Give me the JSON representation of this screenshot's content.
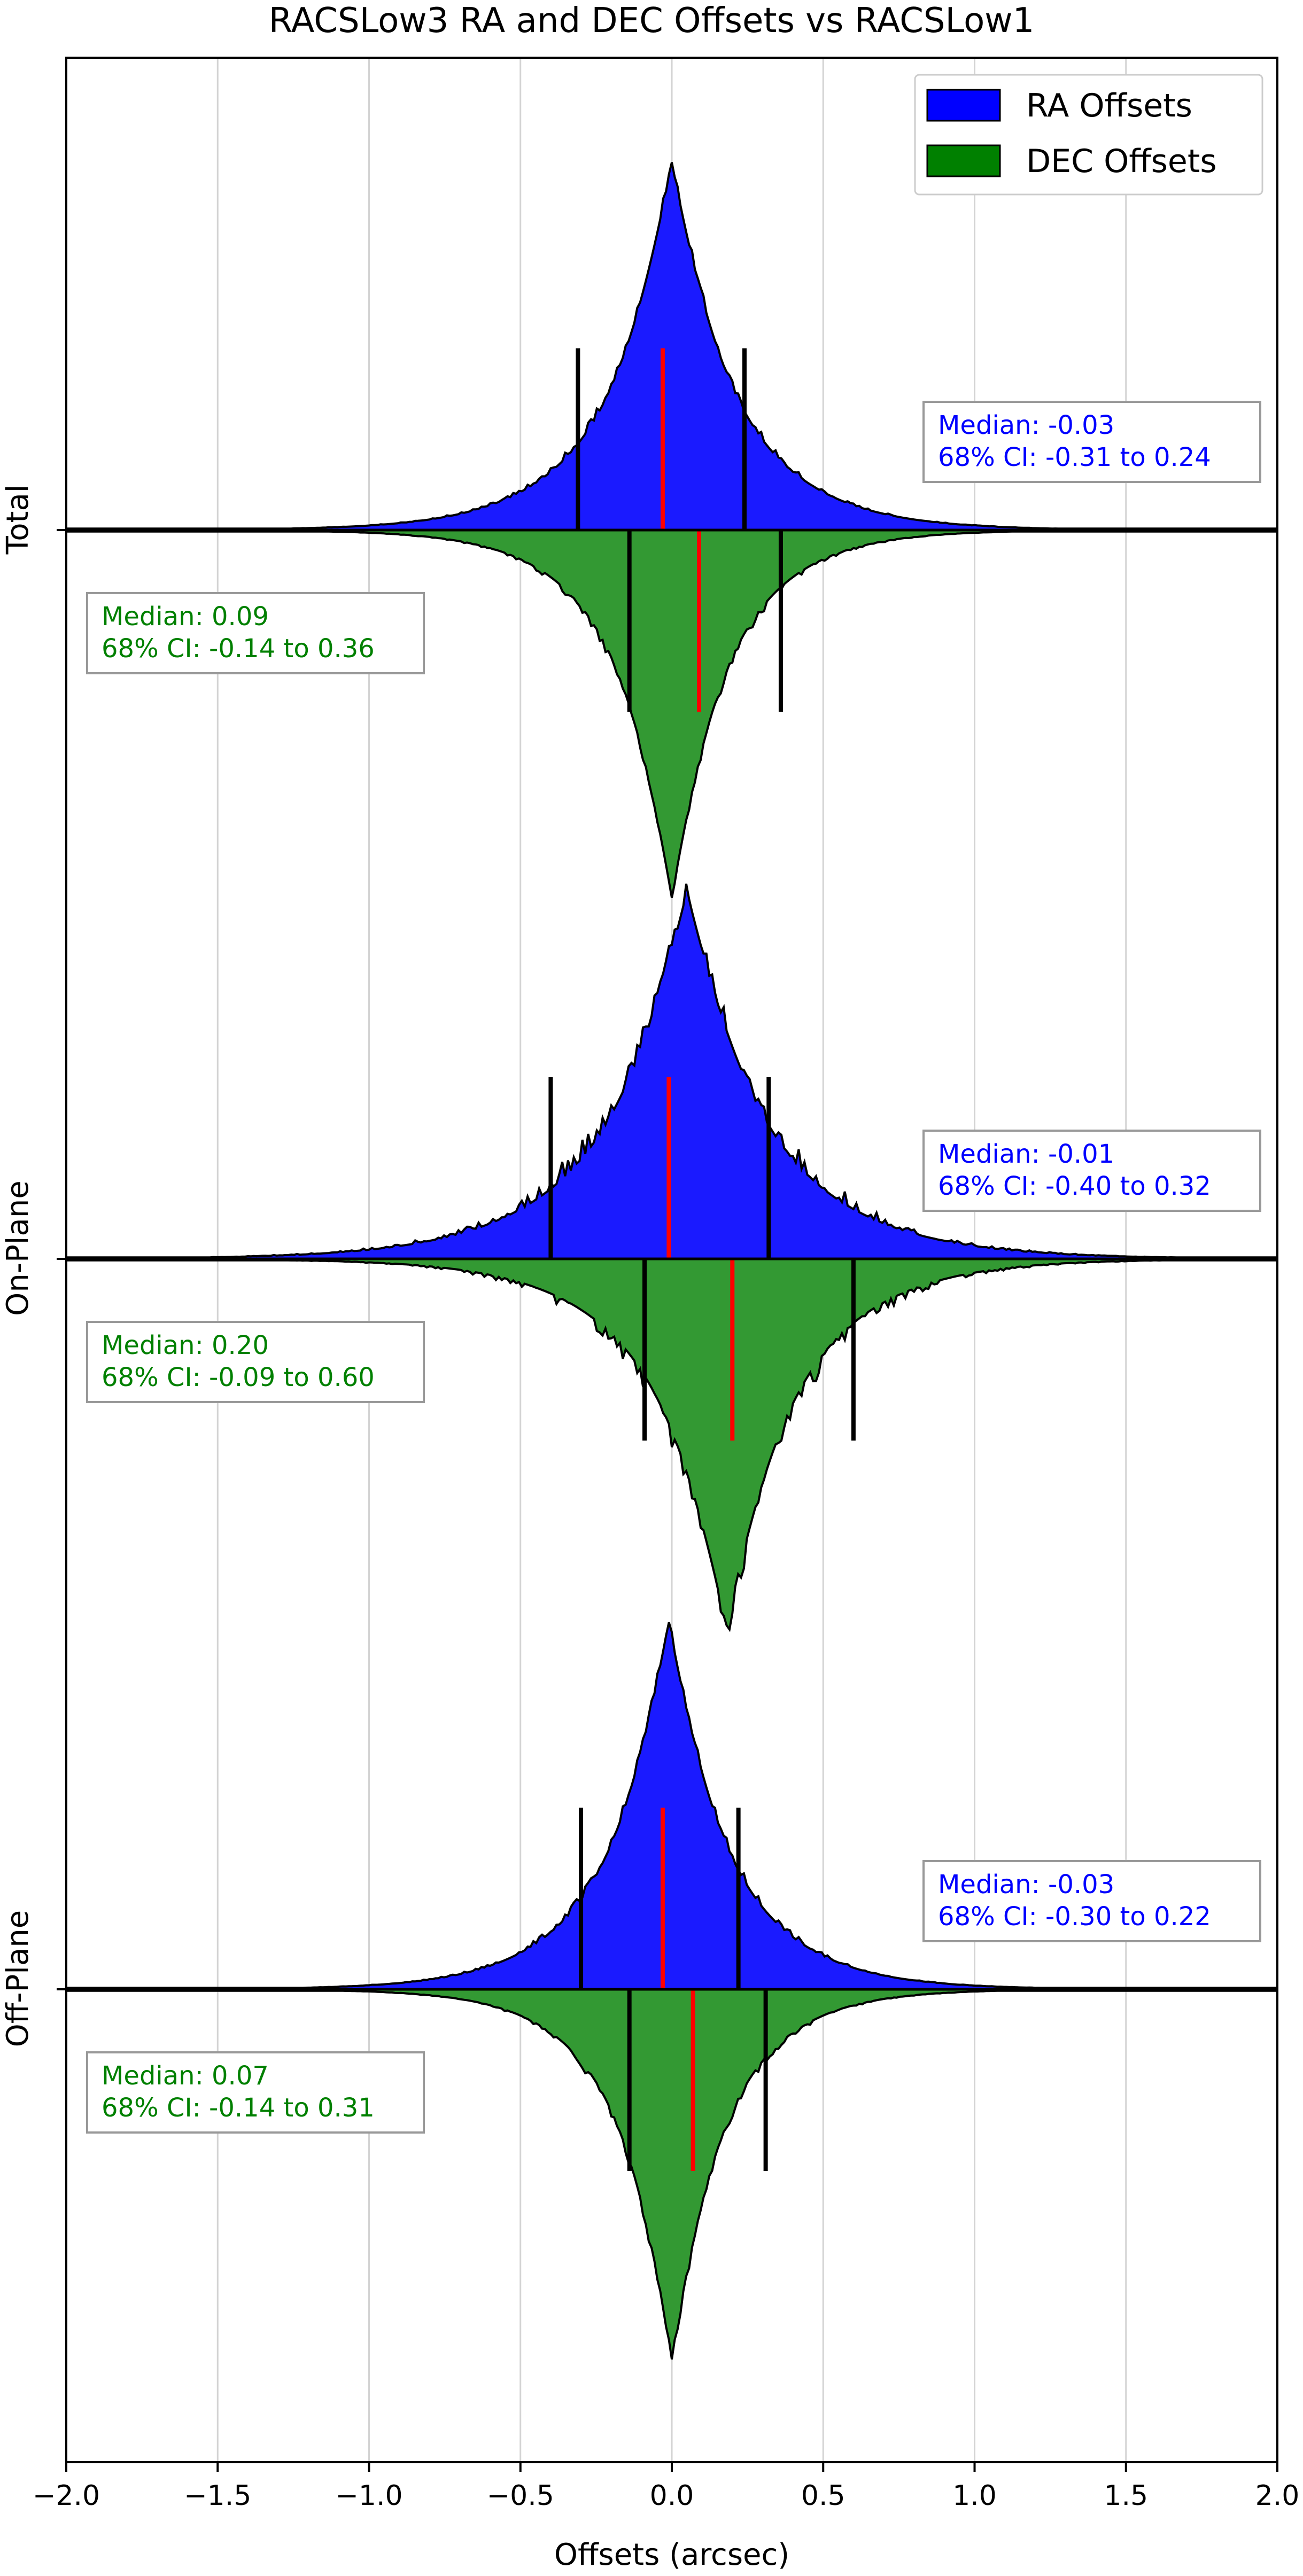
{
  "chart_data": {
    "type": "area",
    "title": "RACSLow3 RA and DEC Offsets vs RACSLow1",
    "xlabel": "Offsets (arcsec)",
    "xlim": [
      -2.0,
      2.0
    ],
    "x_ticks": [
      -2.0,
      -1.5,
      -1.0,
      -0.5,
      0.0,
      0.5,
      1.0,
      1.5,
      2.0
    ],
    "x_tick_labels": [
      "−2.0",
      "−1.5",
      "−1.0",
      "−0.5",
      "0.0",
      "0.5",
      "1.0",
      "1.5",
      "2.0"
    ],
    "grid": "vertical",
    "legend": {
      "placement": "top-right",
      "entries": [
        {
          "label": "RA Offsets",
          "color": "#0000ff"
        },
        {
          "label": "DEC Offsets",
          "color": "#008000"
        }
      ]
    },
    "panels": [
      {
        "label": "Total",
        "ra": {
          "median": -0.03,
          "ci": [
            -0.31,
            0.24
          ],
          "peak": 0.0,
          "width": 0.27,
          "height": 1.0,
          "median_text": "Median: -0.03",
          "ci_text": "68% CI: -0.31 to 0.24"
        },
        "dec": {
          "median": 0.09,
          "ci": [
            -0.14,
            0.36
          ],
          "peak": 0.0,
          "width": 0.24,
          "height": 1.0,
          "median_text": "Median: 0.09",
          "ci_text": "68% CI: -0.14 to 0.36"
        }
      },
      {
        "label": "On-Plane",
        "ra": {
          "median": -0.01,
          "ci": [
            -0.4,
            0.32
          ],
          "peak": 0.05,
          "width": 0.34,
          "height": 1.0,
          "median_text": "Median: -0.01",
          "ci_text": "68% CI: -0.40 to 0.32"
        },
        "dec": {
          "median": 0.2,
          "ci": [
            -0.09,
            0.6
          ],
          "peak": 0.18,
          "width": 0.3,
          "height": 1.0,
          "median_text": "Median: 0.20",
          "ci_text": "68% CI: -0.09 to 0.60"
        }
      },
      {
        "label": "Off-Plane",
        "ra": {
          "median": -0.03,
          "ci": [
            -0.3,
            0.22
          ],
          "peak": -0.01,
          "width": 0.26,
          "height": 1.0,
          "median_text": "Median: -0.03",
          "ci_text": "68% CI: -0.30 to 0.22"
        },
        "dec": {
          "median": 0.07,
          "ci": [
            -0.14,
            0.31
          ],
          "peak": 0.0,
          "width": 0.23,
          "height": 1.0,
          "median_text": "Median: 0.07",
          "ci_text": "68% CI: -0.14 to 0.31"
        }
      }
    ]
  },
  "colors": {
    "ra_fill": "#1a1aff",
    "dec_fill": "#339933",
    "median_line": "#ff0000",
    "ci_line": "#000000",
    "ra_text": "#0000ff",
    "dec_text": "#008000",
    "grid": "#d3d3d3"
  }
}
